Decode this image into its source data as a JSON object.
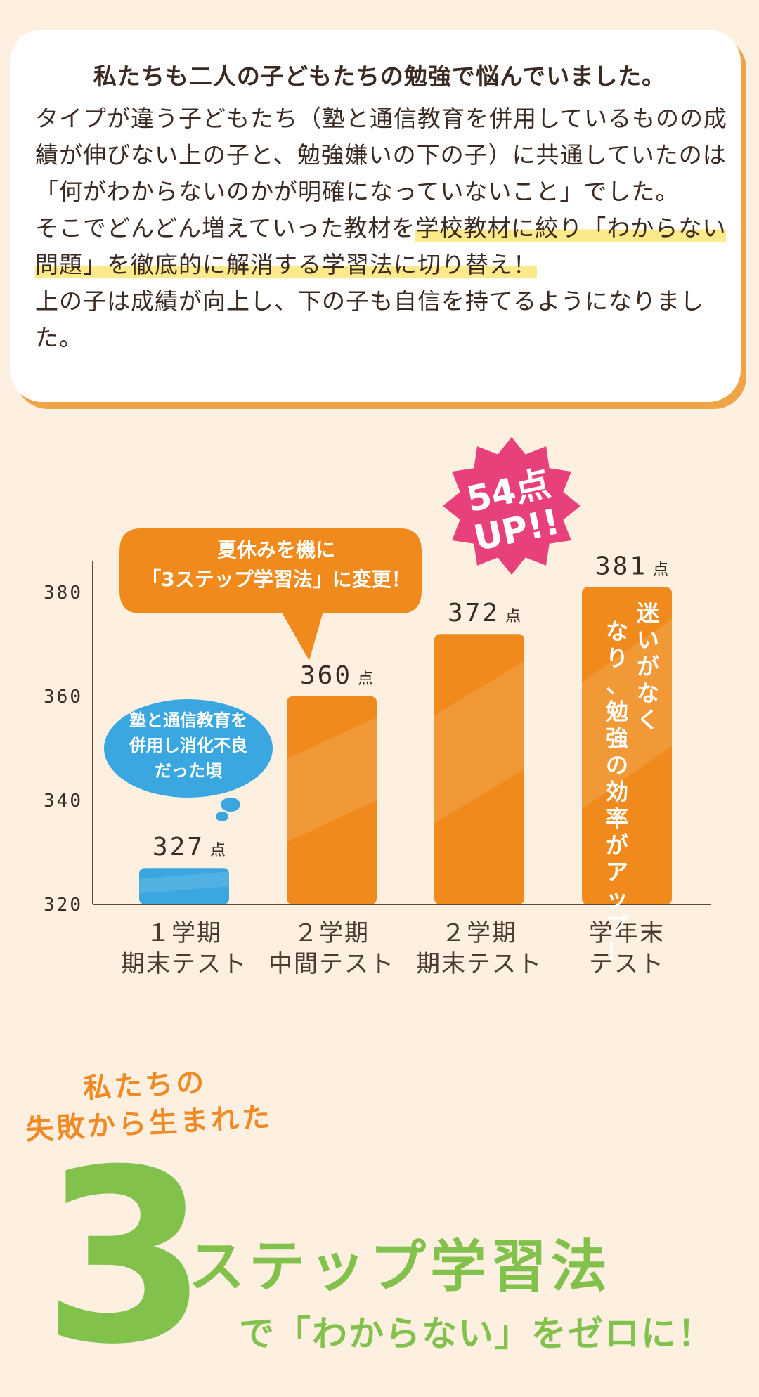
{
  "intro": {
    "heading": "私たちも二人の子どもたちの勉強で悩んでいました。",
    "para1": "タイプが違う子どもたち（塾と通信教育を併用しているものの成績が伸びない上の子と、勉強嫌いの下の子）に共通していたのは「何がわからないのかが明確になっていないこと」でした。",
    "para2_before": "そこでどんどん増えていった教材を",
    "para2_highlight": "学校教材に絞り「わからない問題」を徹底的に解消する学習法に切り替え！",
    "para3": "上の子は成績が向上し、下の子も自信を持てるようになりました。"
  },
  "chart_data": {
    "type": "bar",
    "categories": [
      [
        "１学期",
        "期末テスト"
      ],
      [
        "２学期",
        "中間テスト"
      ],
      [
        "２学期",
        "期末テスト"
      ],
      [
        "学年末",
        "テスト"
      ]
    ],
    "values": [
      327,
      360,
      372,
      381
    ],
    "value_unit": "点",
    "ylim": [
      320,
      386
    ],
    "yticks": [
      320,
      340,
      360,
      380
    ],
    "bar_colors": [
      "#3aa7e0",
      "#f08a1c",
      "#f08a1c",
      "#f08a1c"
    ],
    "annotations": {
      "blue_bubble": [
        "塾と通信教育を",
        "併用し消化不良",
        "だった頃"
      ],
      "orange_bubble": [
        "夏休みを機に",
        "「3ステップ学習法」に変更！"
      ],
      "burst": [
        "54点",
        "UP!!"
      ],
      "last_bar_text": "迷いがなくなり、勉強の効率がアップ！"
    }
  },
  "colors": {
    "background": "#fdf0e1",
    "accent_orange": "#f08a1c",
    "accent_blue": "#3aa7e0",
    "accent_pink": "#e8407a",
    "accent_green": "#82c24c"
  },
  "bottom": {
    "sub_line1": "私たちの",
    "sub_line2": "失敗から生まれた",
    "big_number": "3",
    "title": "ステップ学習法",
    "tagline": "で「わからない」をゼロに！"
  }
}
